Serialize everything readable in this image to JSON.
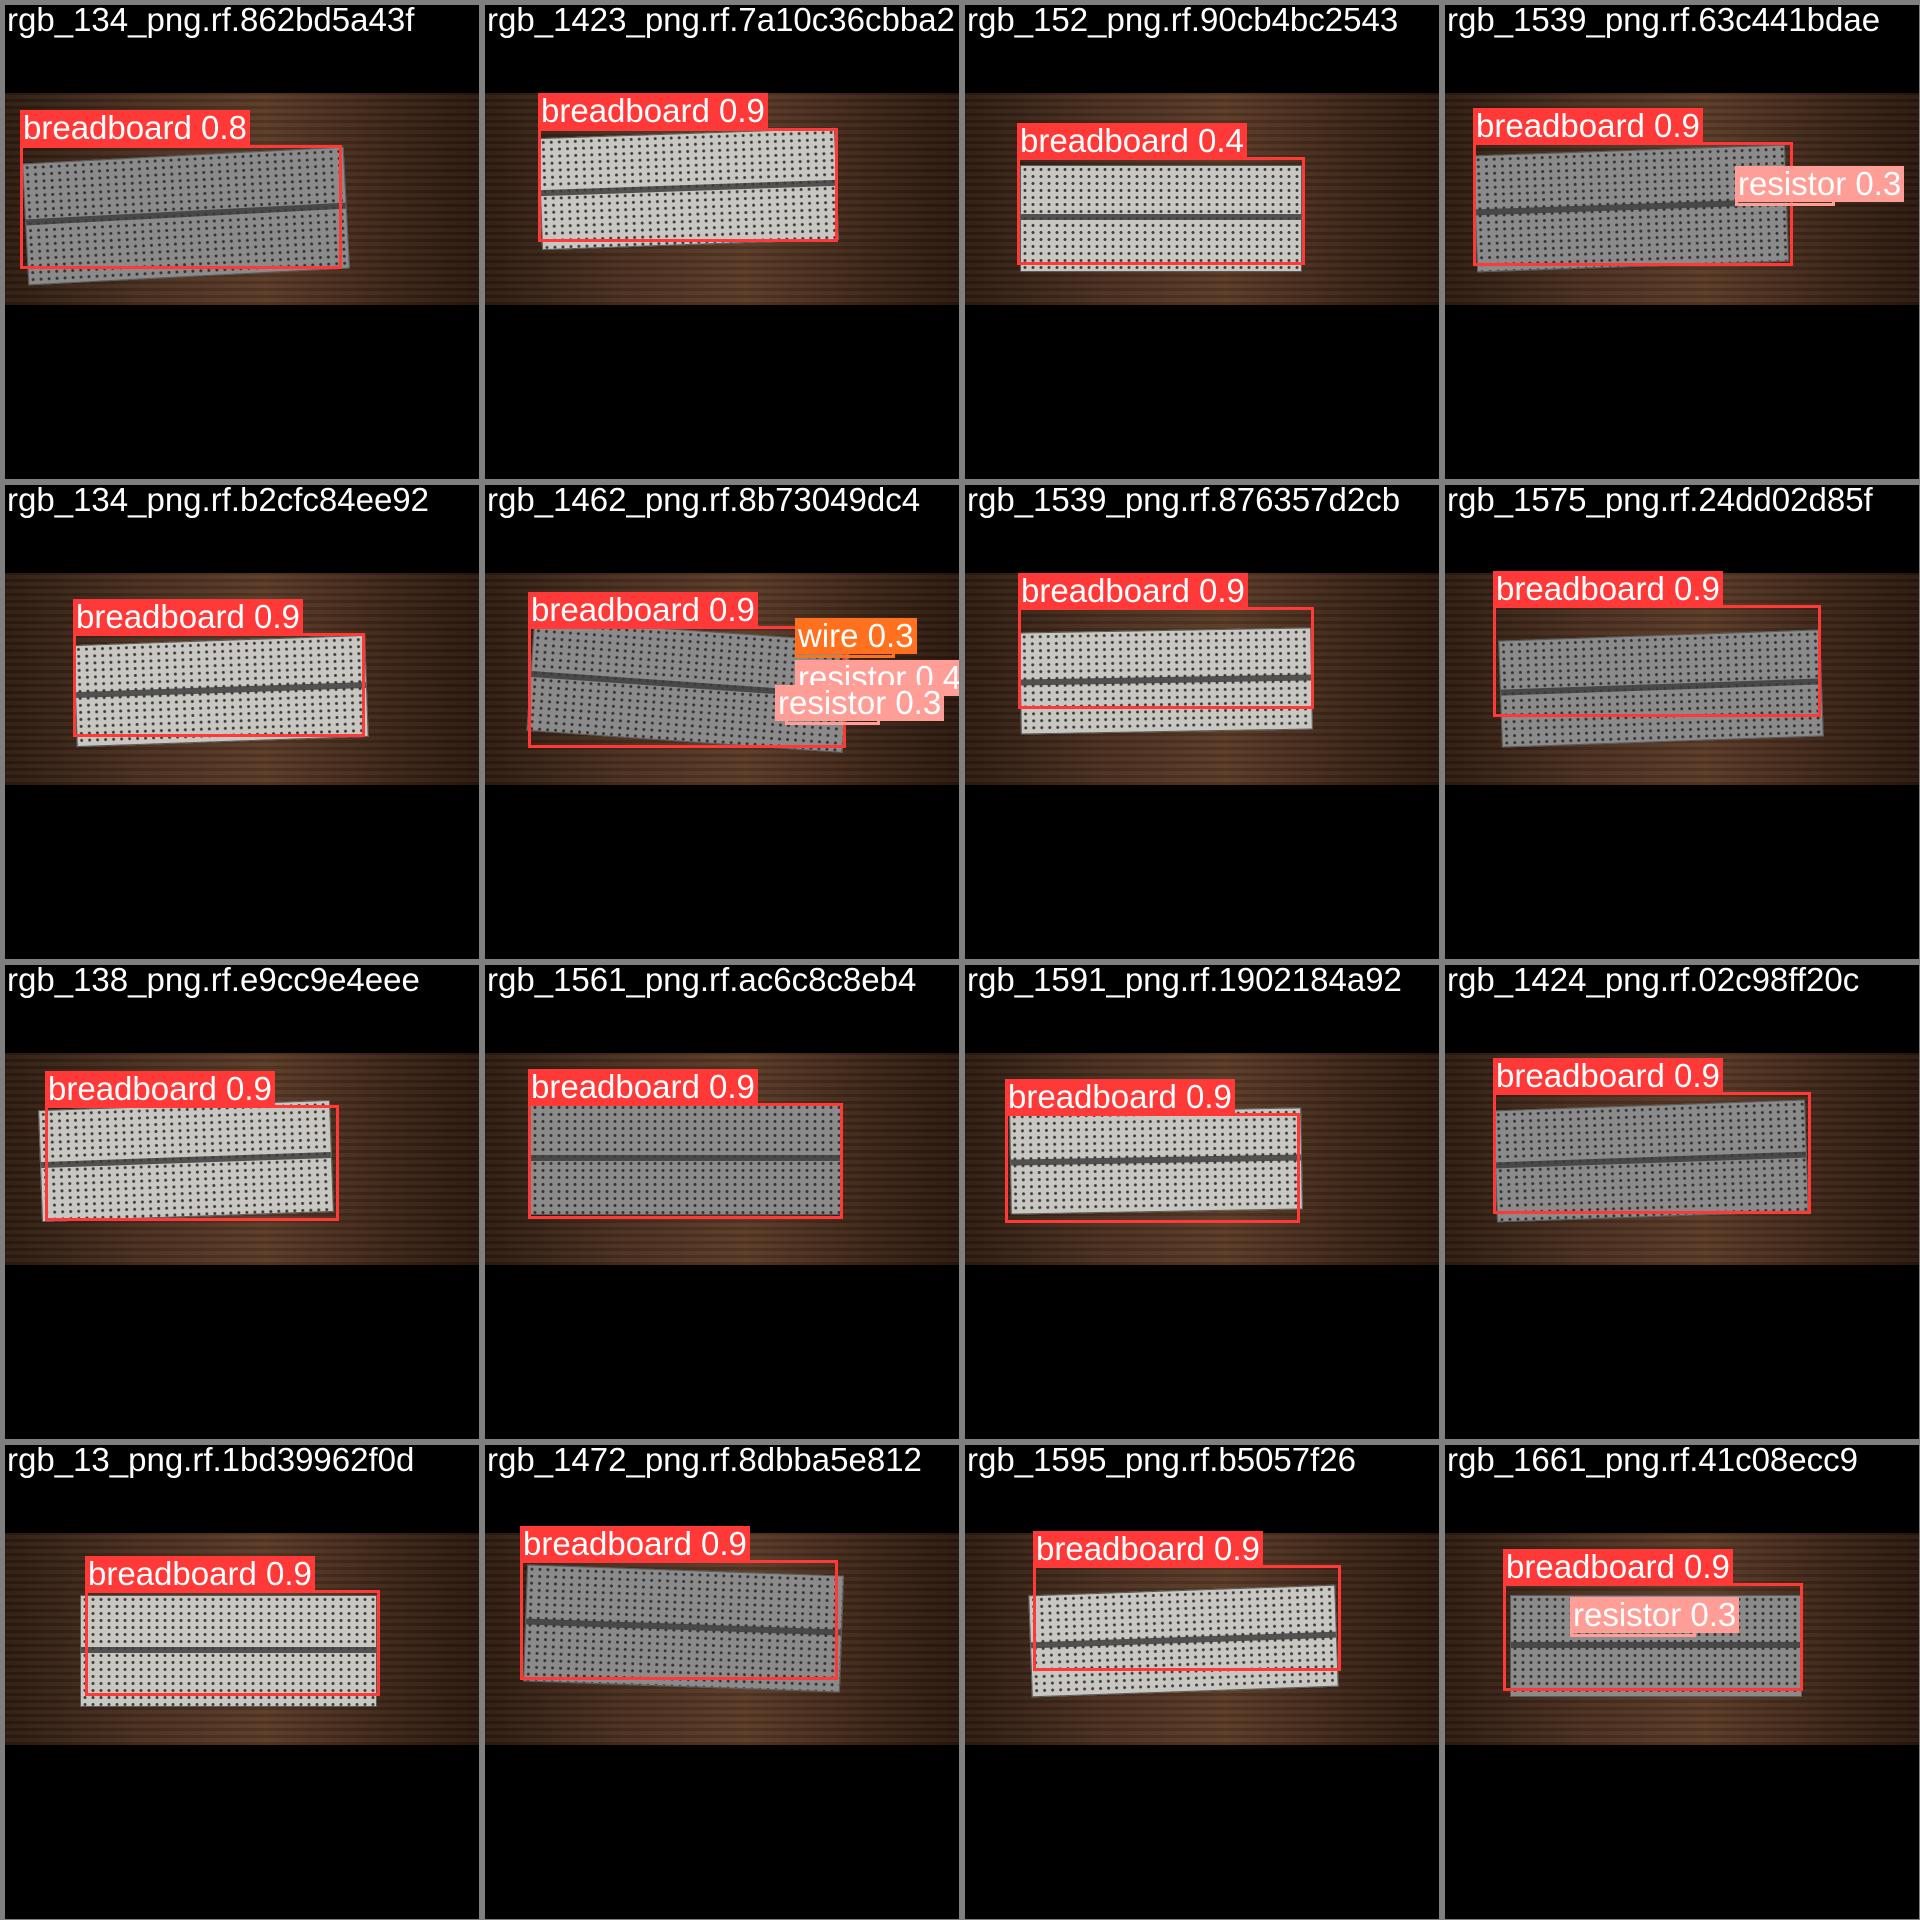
{
  "colors": {
    "breadboard": "#ff3838",
    "resistor": "#ff9d97",
    "wire": "#ff701f"
  },
  "tiles": [
    {
      "filename": "rgb_134_png.rf.862bd5a43f",
      "board_tone": "dark",
      "detections": [
        {
          "class": "breadboard",
          "score": "0.8",
          "label": "breadboard 0.8"
        }
      ]
    },
    {
      "filename": "rgb_1423_png.rf.7a10c36cbba2",
      "board_tone": "light",
      "detections": [
        {
          "class": "breadboard",
          "score": "0.9",
          "label": "breadboard 0.9"
        }
      ]
    },
    {
      "filename": "rgb_152_png.rf.90cb4bc2543",
      "board_tone": "light",
      "detections": [
        {
          "class": "breadboard",
          "score": "0.4",
          "label": "breadboard 0.4"
        }
      ]
    },
    {
      "filename": "rgb_1539_png.rf.63c441bdae",
      "board_tone": "dark",
      "detections": [
        {
          "class": "breadboard",
          "score": "0.9",
          "label": "breadboard 0.9"
        },
        {
          "class": "resistor",
          "score": "0.3",
          "label": "resistor 0.3"
        }
      ]
    },
    {
      "filename": "rgb_134_png.rf.b2cfc84ee92",
      "board_tone": "light",
      "detections": [
        {
          "class": "breadboard",
          "score": "0.9",
          "label": "breadboard 0.9"
        }
      ]
    },
    {
      "filename": "rgb_1462_png.rf.8b73049dc4",
      "board_tone": "dark",
      "detections": [
        {
          "class": "breadboard",
          "score": "0.9",
          "label": "breadboard 0.9"
        },
        {
          "class": "wire",
          "score": "0.3",
          "label": "wire 0.3"
        },
        {
          "class": "resistor",
          "score": "0.4",
          "label": "resistor 0.4"
        },
        {
          "class": "resistor",
          "score": "0.3",
          "label": "resistor 0.3"
        }
      ]
    },
    {
      "filename": "rgb_1539_png.rf.876357d2cb",
      "board_tone": "light",
      "detections": [
        {
          "class": "breadboard",
          "score": "0.9",
          "label": "breadboard 0.9"
        }
      ]
    },
    {
      "filename": "rgb_1575_png.rf.24dd02d85f",
      "board_tone": "dark",
      "detections": [
        {
          "class": "breadboard",
          "score": "0.9",
          "label": "breadboard 0.9"
        }
      ]
    },
    {
      "filename": "rgb_138_png.rf.e9cc9e4eee",
      "board_tone": "light",
      "detections": [
        {
          "class": "breadboard",
          "score": "0.9",
          "label": "breadboard 0.9"
        }
      ]
    },
    {
      "filename": "rgb_1561_png.rf.ac6c8c8eb4",
      "board_tone": "dark",
      "detections": [
        {
          "class": "breadboard",
          "score": "0.9",
          "label": "breadboard 0.9"
        }
      ]
    },
    {
      "filename": "rgb_1591_png.rf.1902184a92",
      "board_tone": "light",
      "detections": [
        {
          "class": "breadboard",
          "score": "0.9",
          "label": "breadboard 0.9"
        }
      ]
    },
    {
      "filename": "rgb_1424_png.rf.02c98ff20c",
      "board_tone": "dark",
      "detections": [
        {
          "class": "breadboard",
          "score": "0.9",
          "label": "breadboard 0.9"
        }
      ]
    },
    {
      "filename": "rgb_13_png.rf.1bd39962f0d",
      "board_tone": "light",
      "detections": [
        {
          "class": "breadboard",
          "score": "0.9",
          "label": "breadboard 0.9"
        }
      ]
    },
    {
      "filename": "rgb_1472_png.rf.8dbba5e812",
      "board_tone": "dark",
      "detections": [
        {
          "class": "breadboard",
          "score": "0.9",
          "label": "breadboard 0.9"
        }
      ]
    },
    {
      "filename": "rgb_1595_png.rf.b5057f26",
      "board_tone": "light",
      "detections": [
        {
          "class": "breadboard",
          "score": "0.9",
          "label": "breadboard 0.9"
        }
      ]
    },
    {
      "filename": "rgb_1661_png.rf.41c08ecc9",
      "board_tone": "dark",
      "detections": [
        {
          "class": "breadboard",
          "score": "0.9",
          "label": "breadboard 0.9"
        },
        {
          "class": "resistor",
          "score": "0.3",
          "label": "resistor 0.3"
        }
      ]
    }
  ]
}
